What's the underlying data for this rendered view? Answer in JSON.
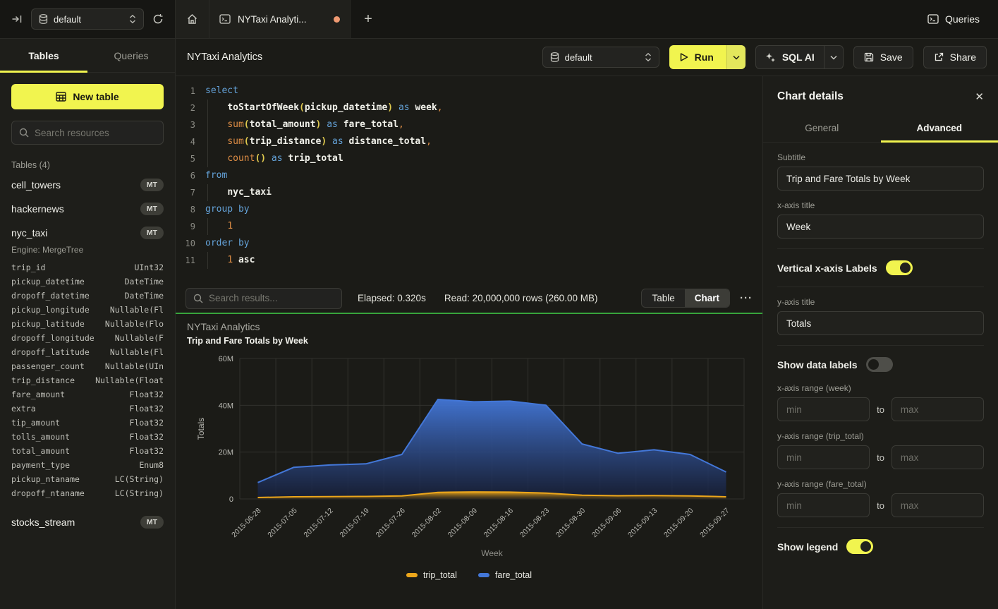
{
  "colors": {
    "accent_yellow": "#F1F44F",
    "success_green": "#37A43C",
    "tab_dot_orange": "#EF9A72",
    "series_trip": "#ECA61B",
    "series_fare": "#4377D8"
  },
  "topbar": {
    "database_value": "default",
    "tab_title": "NYTaxi Analyti...",
    "new_tab_label": "+",
    "queries_label": "Queries"
  },
  "sidebar": {
    "tabs": [
      "Tables",
      "Queries"
    ],
    "active_tab": "Tables",
    "new_table_label": "New table",
    "search_placeholder": "Search resources",
    "tables_header": "Tables (4)",
    "tree": [
      {
        "kind": "table",
        "name": "cell_towers",
        "badge": "MT"
      },
      {
        "kind": "table",
        "name": "hackernews",
        "badge": "MT"
      },
      {
        "kind": "table",
        "name": "nyc_taxi",
        "badge": "MT"
      },
      {
        "kind": "engine",
        "text": "Engine: MergeTree"
      },
      {
        "kind": "column",
        "name": "trip_id",
        "dtype": "UInt32"
      },
      {
        "kind": "column",
        "name": "pickup_datetime",
        "dtype": "DateTime"
      },
      {
        "kind": "column",
        "name": "dropoff_datetime",
        "dtype": "DateTime"
      },
      {
        "kind": "column",
        "name": "pickup_longitude",
        "dtype": "Nullable(Fl"
      },
      {
        "kind": "column",
        "name": "pickup_latitude",
        "dtype": "Nullable(Flo"
      },
      {
        "kind": "column",
        "name": "dropoff_longitude",
        "dtype": "Nullable(F"
      },
      {
        "kind": "column",
        "name": "dropoff_latitude",
        "dtype": "Nullable(Fl"
      },
      {
        "kind": "column",
        "name": "passenger_count",
        "dtype": "Nullable(UIn"
      },
      {
        "kind": "column",
        "name": "trip_distance",
        "dtype": "Nullable(Float"
      },
      {
        "kind": "column",
        "name": "fare_amount",
        "dtype": "Float32"
      },
      {
        "kind": "column",
        "name": "extra",
        "dtype": "Float32"
      },
      {
        "kind": "column",
        "name": "tip_amount",
        "dtype": "Float32"
      },
      {
        "kind": "column",
        "name": "tolls_amount",
        "dtype": "Float32"
      },
      {
        "kind": "column",
        "name": "total_amount",
        "dtype": "Float32"
      },
      {
        "kind": "column",
        "name": "payment_type",
        "dtype": "Enum8"
      },
      {
        "kind": "column",
        "name": "pickup_ntaname",
        "dtype": "LC(String)"
      },
      {
        "kind": "column",
        "name": "dropoff_ntaname",
        "dtype": "LC(String)"
      },
      {
        "kind": "table",
        "name": "stocks_stream",
        "badge": "MT",
        "spaced": true
      }
    ]
  },
  "toolbar": {
    "title": "NYTaxi Analytics",
    "database_value": "default",
    "run_label": "Run",
    "sql_ai_label": "SQL AI",
    "save_label": "Save",
    "share_label": "Share"
  },
  "editor": {
    "lines": [
      {
        "n": "1",
        "ind": false,
        "tokens": [
          [
            "kw",
            "select"
          ]
        ]
      },
      {
        "n": "2",
        "ind": true,
        "tokens": [
          [
            "tx",
            "    "
          ],
          [
            "id",
            "toStartOfWeek"
          ],
          [
            "pa",
            "("
          ],
          [
            "id",
            "pickup_datetime"
          ],
          [
            "pa",
            ")"
          ],
          [
            "kw",
            " as "
          ],
          [
            "id",
            "week"
          ],
          [
            "pu",
            ","
          ]
        ]
      },
      {
        "n": "3",
        "ind": true,
        "tokens": [
          [
            "tx",
            "    "
          ],
          [
            "fn",
            "sum"
          ],
          [
            "pa",
            "("
          ],
          [
            "id",
            "total_amount"
          ],
          [
            "pa",
            ")"
          ],
          [
            "kw",
            " as "
          ],
          [
            "id",
            "fare_total"
          ],
          [
            "pu",
            ","
          ]
        ]
      },
      {
        "n": "4",
        "ind": true,
        "tokens": [
          [
            "tx",
            "    "
          ],
          [
            "fn",
            "sum"
          ],
          [
            "pa",
            "("
          ],
          [
            "id",
            "trip_distance"
          ],
          [
            "pa",
            ")"
          ],
          [
            "kw",
            " as "
          ],
          [
            "id",
            "distance_total"
          ],
          [
            "pu",
            ","
          ]
        ]
      },
      {
        "n": "5",
        "ind": true,
        "tokens": [
          [
            "tx",
            "    "
          ],
          [
            "fn",
            "count"
          ],
          [
            "pa",
            "()"
          ],
          [
            "kw",
            " as "
          ],
          [
            "id",
            "trip_total"
          ]
        ]
      },
      {
        "n": "6",
        "ind": false,
        "tokens": [
          [
            "kw",
            "from"
          ]
        ]
      },
      {
        "n": "7",
        "ind": true,
        "tokens": [
          [
            "tx",
            "    "
          ],
          [
            "id",
            "nyc_taxi"
          ]
        ]
      },
      {
        "n": "8",
        "ind": false,
        "tokens": [
          [
            "kw",
            "group by"
          ]
        ]
      },
      {
        "n": "9",
        "ind": true,
        "tokens": [
          [
            "tx",
            "    "
          ],
          [
            "nu",
            "1"
          ]
        ]
      },
      {
        "n": "10",
        "ind": false,
        "tokens": [
          [
            "kw",
            "order by"
          ]
        ]
      },
      {
        "n": "11",
        "ind": true,
        "tokens": [
          [
            "tx",
            "    "
          ],
          [
            "nu",
            "1"
          ],
          [
            "id",
            " asc"
          ]
        ]
      }
    ]
  },
  "results_bar": {
    "search_placeholder": "Search results...",
    "elapsed": "Elapsed: 0.320s",
    "read": "Read: 20,000,000 rows (260.00 MB)",
    "view_tabs": [
      "Table",
      "Chart"
    ],
    "active_view": "Chart",
    "more_label": "···"
  },
  "chart_data": {
    "type": "area",
    "title": "NYTaxi Analytics",
    "subtitle": "Trip and Fare Totals by Week",
    "xlabel": "Week",
    "ylabel": "Totals",
    "ylim": [
      0,
      60000000
    ],
    "yticks": [
      {
        "v": 0,
        "label": "0"
      },
      {
        "v": 20000000,
        "label": "20M"
      },
      {
        "v": 40000000,
        "label": "40M"
      },
      {
        "v": 60000000,
        "label": "60M"
      }
    ],
    "grid": true,
    "legend_position": "bottom",
    "categories": [
      "2015-06-28",
      "2015-07-05",
      "2015-07-12",
      "2015-07-19",
      "2015-07-26",
      "2015-08-02",
      "2015-08-09",
      "2015-08-16",
      "2015-08-23",
      "2015-08-30",
      "2015-09-06",
      "2015-09-13",
      "2015-09-20",
      "2015-09-27"
    ],
    "series": [
      {
        "name": "trip_total",
        "color": "#ECA61B",
        "fill_from": "rgba(236,166,27,0.95)",
        "fill_to": "rgba(70,52,14,0.55)",
        "values": [
          600000,
          900000,
          1000000,
          1050000,
          1300000,
          2800000,
          3000000,
          2900000,
          2500000,
          1600000,
          1350000,
          1450000,
          1300000,
          900000
        ]
      },
      {
        "name": "fare_total",
        "color": "#4377D8",
        "fill_from": "rgba(67,119,216,0.95)",
        "fill_to": "rgba(22,30,56,0.80)",
        "values": [
          7000000,
          13500000,
          14500000,
          15000000,
          19000000,
          42500000,
          41500000,
          41800000,
          40000000,
          23500000,
          19500000,
          21000000,
          19000000,
          11500000
        ]
      }
    ]
  },
  "details_panel": {
    "title": "Chart details",
    "close_label": "✕",
    "tabs": [
      "General",
      "Advanced"
    ],
    "active_tab": "Advanced",
    "subtitle": {
      "label": "Subtitle",
      "value": "Trip and Fare Totals by Week"
    },
    "x_axis_title": {
      "label": "x-axis title",
      "value": "Week"
    },
    "vertical_labels": {
      "label": "Vertical x-axis Labels",
      "on": true
    },
    "y_axis_title": {
      "label": "y-axis title",
      "value": "Totals"
    },
    "show_data_labels": {
      "label": "Show data labels",
      "on": false
    },
    "x_axis_range": {
      "label": "x-axis range (week)"
    },
    "y_axis_range_trip": {
      "label": "y-axis range (trip_total)"
    },
    "y_axis_range_fare": {
      "label": "y-axis range (fare_total)"
    },
    "range_min_placeholder": "min",
    "range_max_placeholder": "max",
    "to_label": "to",
    "show_legend": {
      "label": "Show legend",
      "on": true
    }
  }
}
